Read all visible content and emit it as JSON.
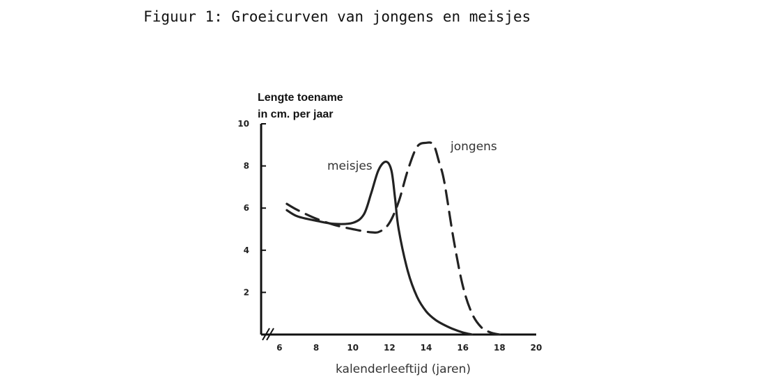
{
  "caption": "Figuur 1: Groeicurven van jongens en meisjes",
  "chart_data": {
    "type": "line",
    "title": "",
    "ylabel_lines": [
      "Lengte toename",
      "in cm. per jaar"
    ],
    "xlabel": "kalenderleeftijd (jaren)",
    "xlim": [
      5,
      20
    ],
    "ylim": [
      0,
      10
    ],
    "axis_break": "//",
    "xticks": [
      6,
      8,
      10,
      12,
      14,
      16,
      18,
      20
    ],
    "yticks": [
      2,
      4,
      6,
      8,
      10
    ],
    "grid": false,
    "series": [
      {
        "name": "meisjes",
        "style": "solid",
        "color": "#222222",
        "x": [
          6.4,
          7,
          8,
          9,
          10,
          10.6,
          11,
          11.4,
          11.8,
          12.1,
          12.3,
          12.5,
          13,
          13.5,
          14,
          14.5,
          15,
          15.5,
          16,
          16.5
        ],
        "y": [
          5.9,
          5.6,
          5.4,
          5.25,
          5.3,
          5.7,
          6.7,
          7.8,
          8.2,
          7.8,
          6.5,
          5.0,
          3.0,
          1.8,
          1.1,
          0.7,
          0.45,
          0.25,
          0.1,
          0.0
        ]
      },
      {
        "name": "jongens",
        "style": "dashed",
        "color": "#222222",
        "x": [
          6.4,
          7,
          8,
          9,
          10,
          11,
          11.5,
          12,
          12.5,
          13,
          13.5,
          14,
          14.4,
          14.7,
          15,
          15.5,
          16,
          16.5,
          17,
          17.5,
          18
        ],
        "y": [
          6.2,
          5.9,
          5.5,
          5.2,
          5.0,
          4.85,
          4.9,
          5.3,
          6.3,
          7.8,
          8.9,
          9.1,
          9.0,
          8.2,
          7.2,
          4.5,
          2.3,
          1.0,
          0.35,
          0.1,
          0.0
        ]
      }
    ]
  }
}
